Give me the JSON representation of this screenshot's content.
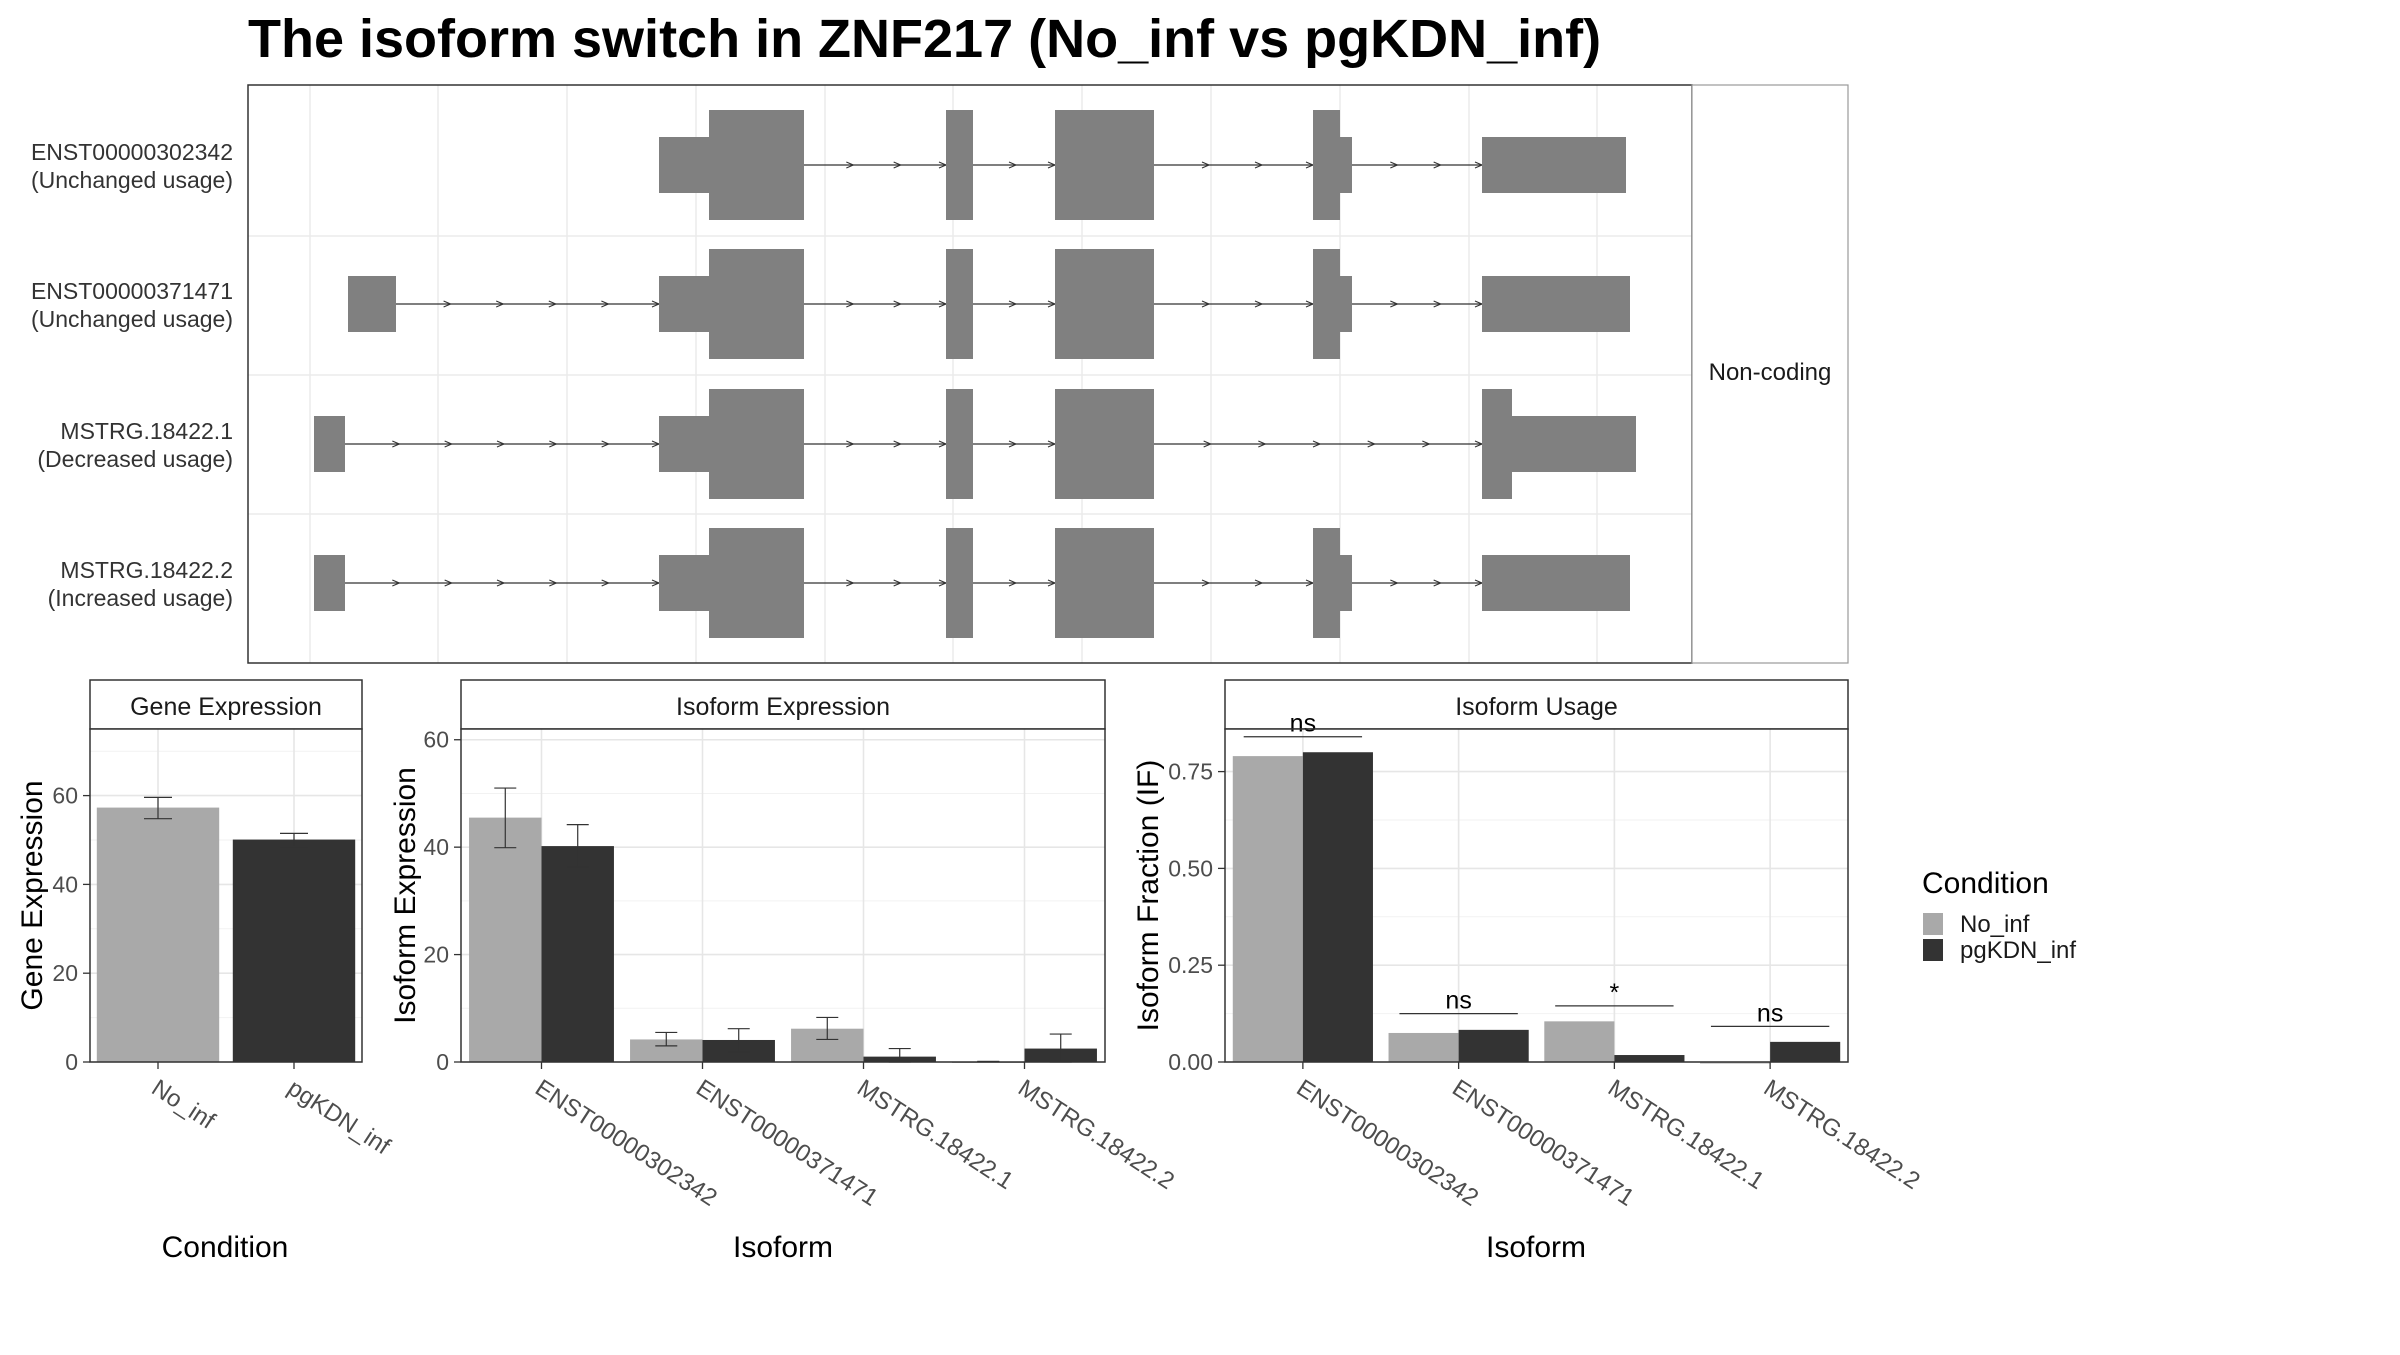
{
  "title": "The isoform switch in ZNF217 (No_inf vs pgKDN_inf)",
  "structure": {
    "isoform_labels": [
      [
        "ENST00000302342",
        "(Unchanged usage)"
      ],
      [
        "ENST00000371471",
        "(Unchanged usage)"
      ],
      [
        "MSTRG.18422.1",
        "(Decreased usage)"
      ],
      [
        "MSTRG.18422.2",
        "(Increased usage)"
      ]
    ],
    "strip_label": "Non-coding"
  },
  "legend": {
    "title": "Condition",
    "items": [
      {
        "label": "No_inf",
        "color": "#A9A9A9"
      },
      {
        "label": "pgKDN_inf",
        "color": "#333333"
      }
    ]
  },
  "chart_data": [
    {
      "type": "bar",
      "panel": "Gene Expression",
      "xlabel": "Condition",
      "ylabel": "Gene Expression",
      "ylim": [
        0,
        75
      ],
      "yticks": [
        0,
        20,
        40,
        60
      ],
      "categories": [
        "No_inf",
        "pgKDN_inf"
      ],
      "values": [
        57.3,
        50.1
      ],
      "errors": [
        [
          54.8,
          59.6
        ],
        [
          48.5,
          51.5
        ]
      ],
      "colors": [
        "#A9A9A9",
        "#333333"
      ],
      "grid": true
    },
    {
      "type": "bar",
      "panel": "Isoform Expression",
      "xlabel": "Isoform",
      "ylabel": "Isoform Expression",
      "ylim": [
        0,
        62
      ],
      "yticks": [
        0,
        20,
        40,
        60
      ],
      "categories": [
        "ENST00000302342",
        "ENST00000371471",
        "MSTRG.18422.1",
        "MSTRG.18422.2"
      ],
      "series": [
        {
          "name": "No_inf",
          "color": "#A9A9A9",
          "values": [
            45.5,
            4.2,
            6.2,
            0.1
          ],
          "errors": [
            [
              39.9,
              51.0
            ],
            [
              3.0,
              5.5
            ],
            [
              4.2,
              8.3
            ],
            [
              0.1,
              0.1
            ]
          ]
        },
        {
          "name": "pgKDN_inf",
          "color": "#333333",
          "values": [
            40.2,
            4.1,
            1.0,
            2.5
          ],
          "errors": [
            [
              36.3,
              44.2
            ],
            [
              1.8,
              6.2
            ],
            [
              0.0,
              2.5
            ],
            [
              0.0,
              5.2
            ]
          ]
        }
      ],
      "grid": true
    },
    {
      "type": "bar",
      "panel": "Isoform Usage",
      "xlabel": "Isoform",
      "ylabel": "Isoform Fraction (IF)",
      "ylim": [
        0,
        0.86
      ],
      "yticks": [
        0.0,
        0.25,
        0.5,
        0.75
      ],
      "ytick_labels": [
        "0.00",
        "0.25",
        "0.50",
        "0.75"
      ],
      "categories": [
        "ENST00000302342",
        "ENST00000371471",
        "MSTRG.18422.1",
        "MSTRG.18422.2"
      ],
      "series": [
        {
          "name": "No_inf",
          "color": "#A9A9A9",
          "values": [
            0.79,
            0.075,
            0.105,
            0.0
          ]
        },
        {
          "name": "pgKDN_inf",
          "color": "#333333",
          "values": [
            0.8,
            0.083,
            0.018,
            0.052
          ]
        }
      ],
      "significance": [
        {
          "category": 0,
          "label": "ns",
          "y": 0.84
        },
        {
          "category": 1,
          "label": "ns",
          "y": 0.125
        },
        {
          "category": 2,
          "label": "*",
          "y": 0.145
        },
        {
          "category": 3,
          "label": "ns",
          "y": 0.092
        }
      ],
      "grid": true
    }
  ]
}
